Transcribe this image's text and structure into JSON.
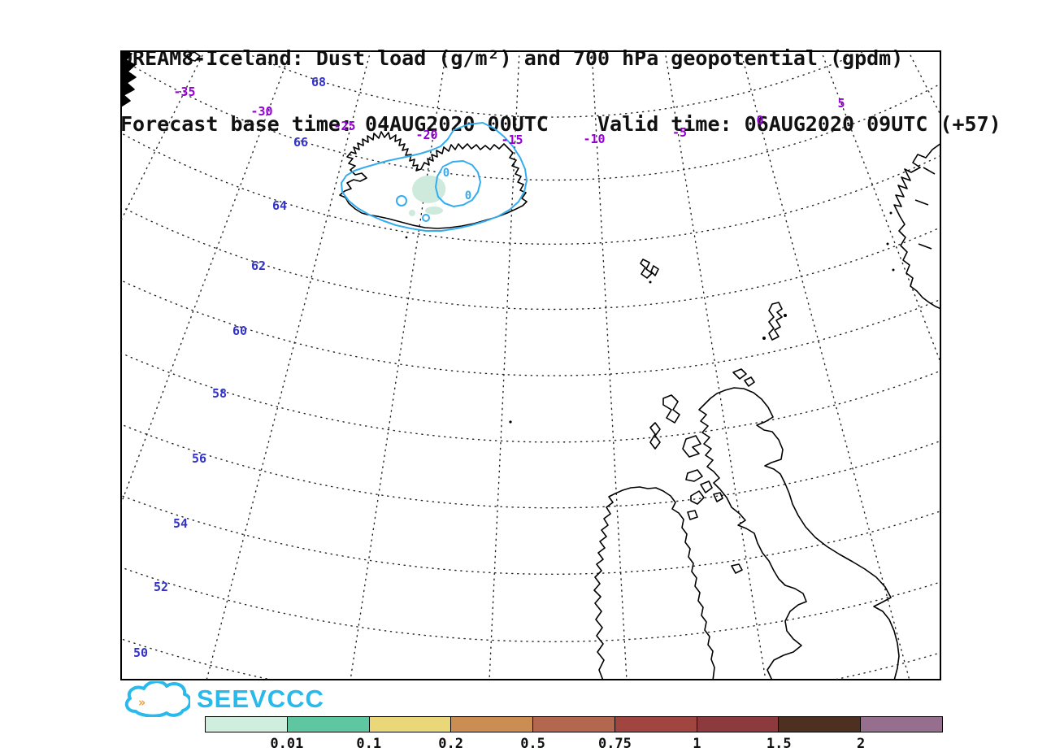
{
  "title": {
    "line1": "DREAM8-Iceland: Dust load (g/m²) and 700 hPa geopotential (gpdm)",
    "line2": "Forecast base time: 04AUG2020 00UTC    Valid time: 06AUG2020 09UTC (+57)"
  },
  "map": {
    "lon_labels": [
      "-35",
      "-30",
      "-25",
      "-20",
      "-15",
      "-10",
      "-5",
      "0",
      "5"
    ],
    "lat_labels": [
      "68",
      "66",
      "64",
      "62",
      "60",
      "58",
      "56",
      "54",
      "52",
      "50"
    ],
    "dust_contour_labels": [
      "0",
      "0"
    ],
    "colors": {
      "grid": "#222222",
      "coastline": "#000000",
      "lon_label": "#9400d3",
      "lat_label": "#3333cc",
      "dust_contour": "#35acee",
      "dust_fill_light": "#cdeadd"
    }
  },
  "legend": {
    "labels": [
      "0.01",
      "0.1",
      "0.2",
      "0.5",
      "0.75",
      "1",
      "1.5",
      "2"
    ],
    "segment_colors": [
      "#cfeede",
      "#5ec7a1",
      "#e9d77a",
      "#cb8d51",
      "#b3674f",
      "#a04540",
      "#8c3a3e",
      "#4e3020",
      "#966f8e"
    ]
  },
  "logo": {
    "text": "SEEVCCC",
    "chevrons": "»",
    "color": "#29b9ea",
    "chevron_color": "#f7941d"
  }
}
